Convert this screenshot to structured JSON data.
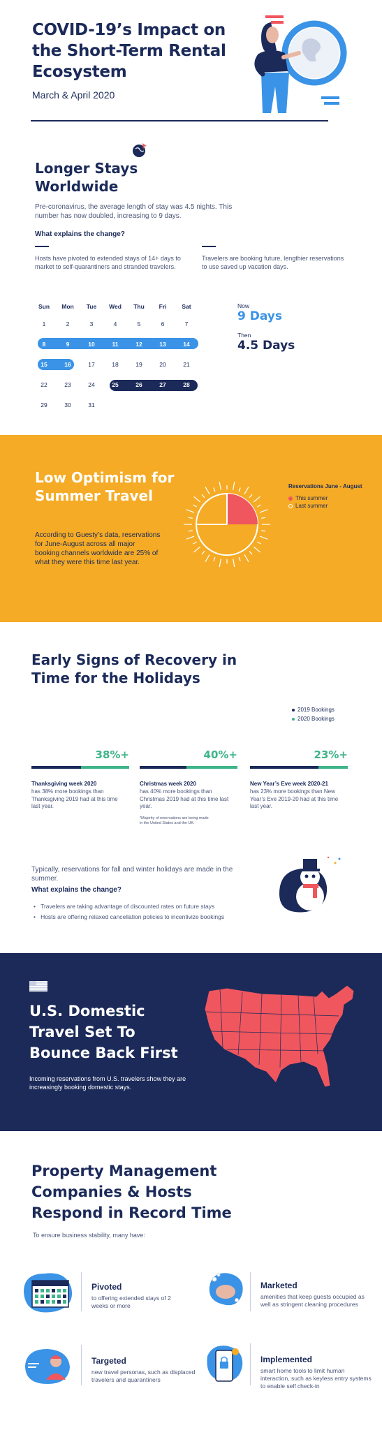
{
  "header": {
    "title": "COVID-19’s Impact on the Short-Term Rental Ecosystem",
    "subtitle": "March & April 2020"
  },
  "longer_stays": {
    "title": "Longer Stays Worldwide",
    "body": "Pre-coronavirus, the average length of stay was 4.5 nights. This number has now doubled, increasing to 9 days.",
    "question": "What explains the change?",
    "reason_left": "Hosts have pivoted to extended stays of 14+ days to market to self-quarantiners and stranded travelers.",
    "reason_right": "Travelers are booking future, lengthier reservations to use saved up vacation days.",
    "calendar": {
      "days": [
        "Sun",
        "Mon",
        "Tue",
        "Wed",
        "Thu",
        "Fri",
        "Sat"
      ],
      "weeks": [
        [
          "1",
          "2",
          "3",
          "4",
          "5",
          "6",
          "7"
        ],
        [
          "8",
          "9",
          "10",
          "11",
          "12",
          "13",
          "14"
        ],
        [
          "15",
          "16",
          "17",
          "18",
          "19",
          "20",
          "21"
        ],
        [
          "22",
          "23",
          "24",
          "25",
          "26",
          "27",
          "28"
        ],
        [
          "29",
          "30",
          "31",
          "",
          "",
          "",
          ""
        ]
      ]
    },
    "now_label": "Now",
    "now_value": "9 Days",
    "then_label": "Then",
    "then_value": "4.5 Days"
  },
  "optimism": {
    "title": "Low Optimism for Summer Travel",
    "body": "According to Guesty’s data, reservations for June-August across all major booking channels worldwide are 25% of what they were this time last year.",
    "legend_title": "Reservations June - August",
    "legend_this": "This summer",
    "legend_last": "Last summer",
    "accent_this": "#f0565e",
    "accent_last": "#ffffff"
  },
  "recovery": {
    "title": "Early Signs of Recovery in Time for the Holidays",
    "legend_2019": "2019 Bookings",
    "legend_2020": "2020 Bookings",
    "color_2019": "#1b2a59",
    "color_2020": "#3eb489",
    "weeks": [
      {
        "pct": "38%+",
        "value": 38,
        "title": "Thanksgiving week 2020",
        "body": "has 38% more bookings than Thanksgiving 2019 had at this time last year."
      },
      {
        "pct": "40%+",
        "value": 40,
        "title": "Christmas week 2020",
        "body": "has 40% more bookings than Christmas 2019 had at this time last year."
      },
      {
        "pct": "23%+",
        "value": 23,
        "title": "New Year’s Eve week 2020-21",
        "body": "has 23% more bookings than New Year’s Eve 2019-20 had at this time last year."
      }
    ],
    "footnote": "*Majority of reservations are being made in the United States and the UK.",
    "body": "Typically, reservations for fall and winter holidays are made in the summer.",
    "question": "What explains the change?",
    "bullets": [
      "Travelers are taking advantage of discounted rates on future stays",
      "Hosts are offering relaxed cancellation policies to incentivize bookings"
    ]
  },
  "domestic": {
    "title": "U.S. Domestic Travel Set To Bounce Back First",
    "body": "Incoming reservations from U.S. travelers show they are increasingly booking domestic stays.",
    "map_color": "#f0565e"
  },
  "response": {
    "title": "Property Management Companies & Hosts Respond in Record Time",
    "subtitle": "To ensure business stability, many have:",
    "actions": [
      {
        "title": "Pivoted",
        "body": "to offering extended stays of 2 weeks or more",
        "icon": "calendar-icon"
      },
      {
        "title": "Marketed",
        "body": "amenities that keep guests occupied as well as stringent cleaning procedures",
        "icon": "washing-hands-icon"
      },
      {
        "title": "Targeted",
        "body": "new travel personas, such as displaced travelers and quarantiners",
        "icon": "person-icon"
      },
      {
        "title": "Implemented",
        "body": "smart home tools to limit human interaction, such as keyless entry systems to enable self check-in",
        "icon": "smartphone-lock-icon"
      }
    ]
  },
  "colors": {
    "navy": "#1b2a59",
    "blue": "#3a93e6",
    "orange": "#f5ab25",
    "coral": "#f0565e",
    "green": "#3eb489"
  }
}
